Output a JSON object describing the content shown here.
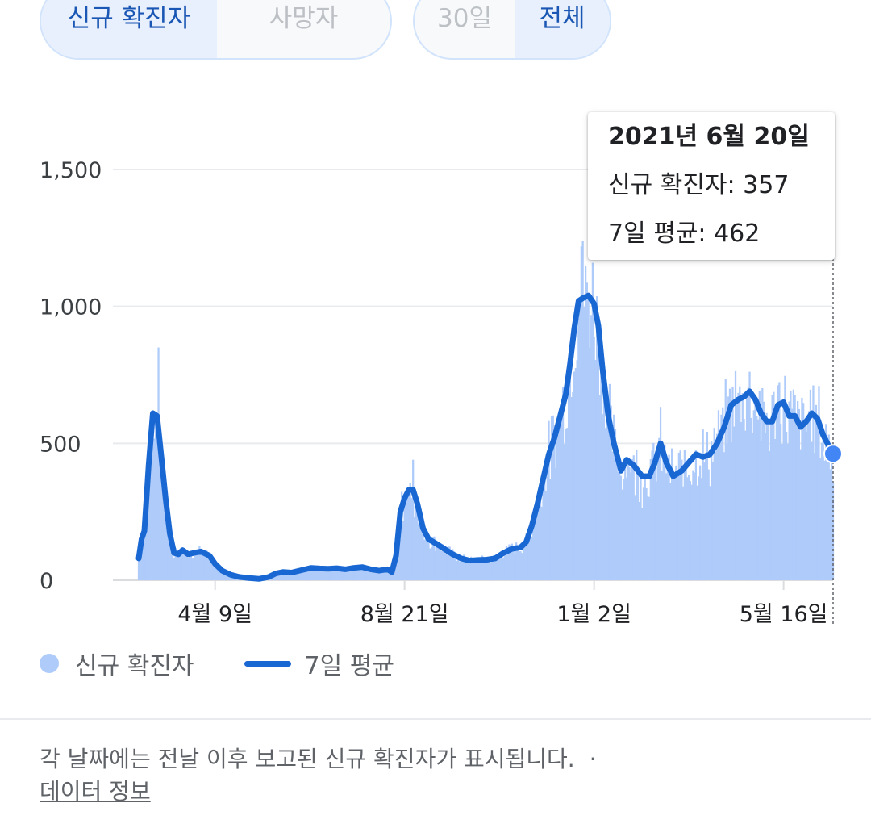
{
  "toggles": {
    "metric": [
      {
        "label": "신규 확진자",
        "active": true
      },
      {
        "label": "사망자",
        "active": false
      }
    ],
    "range": [
      {
        "label": "30일",
        "active": false
      },
      {
        "label": "전체",
        "active": true
      }
    ]
  },
  "tooltip": {
    "date": "2021년 6월 20일",
    "new_cases": "신규 확진자: 357",
    "avg": "7일 평균: 462"
  },
  "legend": {
    "bars": "신규 확진자",
    "line": "7일 평균"
  },
  "footnote": "각 날짜에는 전날 이후 보고된 신규 확진자가 표시됩니다.",
  "footnote_dot": "·",
  "data_link": "데이터 정보",
  "colors": {
    "bar": "#aecbfa",
    "line": "#1967d2",
    "marker": "#4285f4",
    "accent": "#1a56b3"
  },
  "chart_data": {
    "type": "bar",
    "title": "",
    "xlabel": "",
    "ylabel": "",
    "ylim": [
      0,
      1500
    ],
    "y_ticks": [
      0,
      500,
      1000,
      1500
    ],
    "y_tick_labels": [
      "0",
      "500",
      "1,000",
      "1,500"
    ],
    "x_range": [
      "2020-02-15",
      "2021-06-20"
    ],
    "x_ticks": [
      {
        "date": "2020-04-09",
        "label": "4월 9일"
      },
      {
        "date": "2020-08-21",
        "label": "8월 21일"
      },
      {
        "date": "2021-01-02",
        "label": "1월 2일"
      },
      {
        "date": "2021-05-16",
        "label": "5월 16일"
      }
    ],
    "grid": true,
    "legend_position": "bottom-left",
    "series": [
      {
        "name": "7일 평균",
        "type": "line",
        "points": [
          [
            "2020-02-15",
            80
          ],
          [
            "2020-02-17",
            150
          ],
          [
            "2020-02-19",
            180
          ],
          [
            "2020-02-22",
            420
          ],
          [
            "2020-02-25",
            610
          ],
          [
            "2020-02-28",
            600
          ],
          [
            "2020-03-02",
            450
          ],
          [
            "2020-03-05",
            300
          ],
          [
            "2020-03-08",
            170
          ],
          [
            "2020-03-11",
            100
          ],
          [
            "2020-03-14",
            95
          ],
          [
            "2020-03-17",
            110
          ],
          [
            "2020-03-21",
            95
          ],
          [
            "2020-03-25",
            100
          ],
          [
            "2020-03-30",
            105
          ],
          [
            "2020-04-05",
            90
          ],
          [
            "2020-04-09",
            60
          ],
          [
            "2020-04-14",
            35
          ],
          [
            "2020-04-20",
            20
          ],
          [
            "2020-04-26",
            12
          ],
          [
            "2020-05-03",
            8
          ],
          [
            "2020-05-10",
            5
          ],
          [
            "2020-05-17",
            12
          ],
          [
            "2020-05-22",
            25
          ],
          [
            "2020-05-27",
            30
          ],
          [
            "2020-06-02",
            28
          ],
          [
            "2020-06-10",
            38
          ],
          [
            "2020-06-16",
            45
          ],
          [
            "2020-06-22",
            43
          ],
          [
            "2020-06-28",
            42
          ],
          [
            "2020-07-04",
            44
          ],
          [
            "2020-07-10",
            40
          ],
          [
            "2020-07-16",
            45
          ],
          [
            "2020-07-22",
            48
          ],
          [
            "2020-07-28",
            40
          ],
          [
            "2020-08-03",
            35
          ],
          [
            "2020-08-09",
            40
          ],
          [
            "2020-08-12",
            30
          ],
          [
            "2020-08-15",
            90
          ],
          [
            "2020-08-18",
            250
          ],
          [
            "2020-08-21",
            300
          ],
          [
            "2020-08-24",
            330
          ],
          [
            "2020-08-27",
            330
          ],
          [
            "2020-08-30",
            280
          ],
          [
            "2020-09-03",
            190
          ],
          [
            "2020-09-07",
            150
          ],
          [
            "2020-09-12",
            135
          ],
          [
            "2020-09-18",
            115
          ],
          [
            "2020-09-24",
            95
          ],
          [
            "2020-09-30",
            80
          ],
          [
            "2020-10-06",
            72
          ],
          [
            "2020-10-12",
            74
          ],
          [
            "2020-10-18",
            75
          ],
          [
            "2020-10-24",
            80
          ],
          [
            "2020-10-30",
            100
          ],
          [
            "2020-11-05",
            115
          ],
          [
            "2020-11-11",
            120
          ],
          [
            "2020-11-15",
            140
          ],
          [
            "2020-11-19",
            200
          ],
          [
            "2020-11-23",
            280
          ],
          [
            "2020-11-27",
            370
          ],
          [
            "2020-12-01",
            460
          ],
          [
            "2020-12-05",
            520
          ],
          [
            "2020-12-09",
            600
          ],
          [
            "2020-12-13",
            680
          ],
          [
            "2020-12-16",
            790
          ],
          [
            "2020-12-19",
            920
          ],
          [
            "2020-12-22",
            1020
          ],
          [
            "2020-12-25",
            1030
          ],
          [
            "2020-12-29",
            1040
          ],
          [
            "2021-01-02",
            1010
          ],
          [
            "2021-01-05",
            930
          ],
          [
            "2021-01-08",
            770
          ],
          [
            "2021-01-12",
            600
          ],
          [
            "2021-01-16",
            500
          ],
          [
            "2021-01-21",
            400
          ],
          [
            "2021-01-25",
            440
          ],
          [
            "2021-01-30",
            420
          ],
          [
            "2021-02-05",
            380
          ],
          [
            "2021-02-10",
            380
          ],
          [
            "2021-02-14",
            430
          ],
          [
            "2021-02-18",
            500
          ],
          [
            "2021-02-22",
            430
          ],
          [
            "2021-02-27",
            380
          ],
          [
            "2021-03-05",
            400
          ],
          [
            "2021-03-10",
            430
          ],
          [
            "2021-03-15",
            460
          ],
          [
            "2021-03-20",
            450
          ],
          [
            "2021-03-25",
            460
          ],
          [
            "2021-03-30",
            500
          ],
          [
            "2021-04-04",
            560
          ],
          [
            "2021-04-09",
            640
          ],
          [
            "2021-04-14",
            660
          ],
          [
            "2021-04-18",
            670
          ],
          [
            "2021-04-22",
            690
          ],
          [
            "2021-04-26",
            660
          ],
          [
            "2021-04-30",
            610
          ],
          [
            "2021-05-04",
            580
          ],
          [
            "2021-05-08",
            580
          ],
          [
            "2021-05-12",
            640
          ],
          [
            "2021-05-16",
            650
          ],
          [
            "2021-05-20",
            600
          ],
          [
            "2021-05-24",
            600
          ],
          [
            "2021-05-28",
            560
          ],
          [
            "2021-06-01",
            580
          ],
          [
            "2021-06-05",
            610
          ],
          [
            "2021-06-09",
            590
          ],
          [
            "2021-06-13",
            530
          ],
          [
            "2021-06-17",
            490
          ],
          [
            "2021-06-20",
            462
          ]
        ]
      },
      {
        "name": "신규 확진자",
        "type": "bar",
        "note": "daily bars follow the 7-day average envelope; peaks ~850 (Feb 29, 2020), ~440 (Aug 27, 2020), ~1,240 (Dec 25, 2020); last value 357 on 2021-06-20"
      }
    ],
    "highlight": {
      "date": "2021-06-20",
      "new_cases": 357,
      "avg": 462
    }
  }
}
